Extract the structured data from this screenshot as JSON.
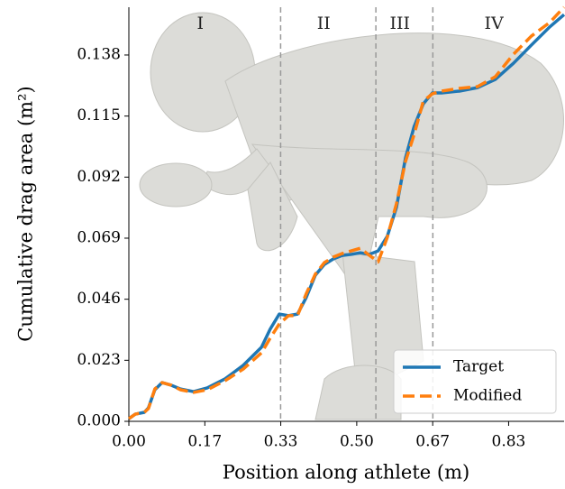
{
  "chart_data": {
    "type": "line",
    "x_label": "Position along athlete (m)",
    "y_label": "Cumulative drag area (m²)",
    "xlim": [
      0,
      0.955
    ],
    "ylim": [
      0,
      0.156
    ],
    "xticks": [
      {
        "value": 0,
        "label": "0.00"
      },
      {
        "value": 0.1667,
        "label": "0.17"
      },
      {
        "value": 0.3333,
        "label": "0.33"
      },
      {
        "value": 0.5,
        "label": "0.50"
      },
      {
        "value": 0.6667,
        "label": "0.67"
      },
      {
        "value": 0.8333,
        "label": "0.83"
      }
    ],
    "yticks": [
      {
        "value": 0,
        "label": "0.000"
      },
      0.023,
      0.046,
      0.069,
      0.092,
      0.115,
      0.138
    ],
    "section_lines": [
      0.333,
      0.542,
      0.667
    ],
    "section_labels": [
      "I",
      "II",
      "III",
      "IV"
    ],
    "legend": "lower right",
    "x": [
      0,
      0.014,
      0.034,
      0.043,
      0.057,
      0.073,
      0.093,
      0.113,
      0.142,
      0.172,
      0.211,
      0.251,
      0.291,
      0.31,
      0.33,
      0.35,
      0.37,
      0.389,
      0.409,
      0.429,
      0.449,
      0.468,
      0.488,
      0.508,
      0.528,
      0.547,
      0.567,
      0.587,
      0.607,
      0.626,
      0.646,
      0.666,
      0.686,
      0.725,
      0.765,
      0.804,
      0.844,
      0.883,
      0.923,
      0.955
    ],
    "series": [
      {
        "name": "Target",
        "color": "#1f77b4",
        "dashed": false,
        "values": [
          0.001,
          0.0027,
          0.0034,
          0.0051,
          0.0119,
          0.0146,
          0.0136,
          0.0122,
          0.0112,
          0.0126,
          0.016,
          0.0211,
          0.0279,
          0.0347,
          0.0404,
          0.0398,
          0.0404,
          0.0466,
          0.055,
          0.0591,
          0.0612,
          0.0625,
          0.0629,
          0.0635,
          0.0629,
          0.0642,
          0.0697,
          0.0805,
          0.0992,
          0.1111,
          0.1196,
          0.1237,
          0.1237,
          0.1244,
          0.1257,
          0.1288,
          0.1349,
          0.1417,
          0.1485,
          0.1532
        ]
      },
      {
        "name": "Modified",
        "color": "#ff7f0e",
        "dashed": true,
        "values": [
          0.001,
          0.0027,
          0.0034,
          0.0048,
          0.0122,
          0.0146,
          0.0136,
          0.0119,
          0.0109,
          0.0119,
          0.0153,
          0.0197,
          0.0258,
          0.0313,
          0.0367,
          0.0398,
          0.0398,
          0.048,
          0.0554,
          0.0598,
          0.0619,
          0.0632,
          0.0642,
          0.0652,
          0.0625,
          0.0601,
          0.0693,
          0.0819,
          0.0979,
          0.1081,
          0.1206,
          0.1234,
          0.1244,
          0.1254,
          0.1261,
          0.1298,
          0.1383,
          0.1451,
          0.1502,
          0.156
        ]
      }
    ]
  }
}
